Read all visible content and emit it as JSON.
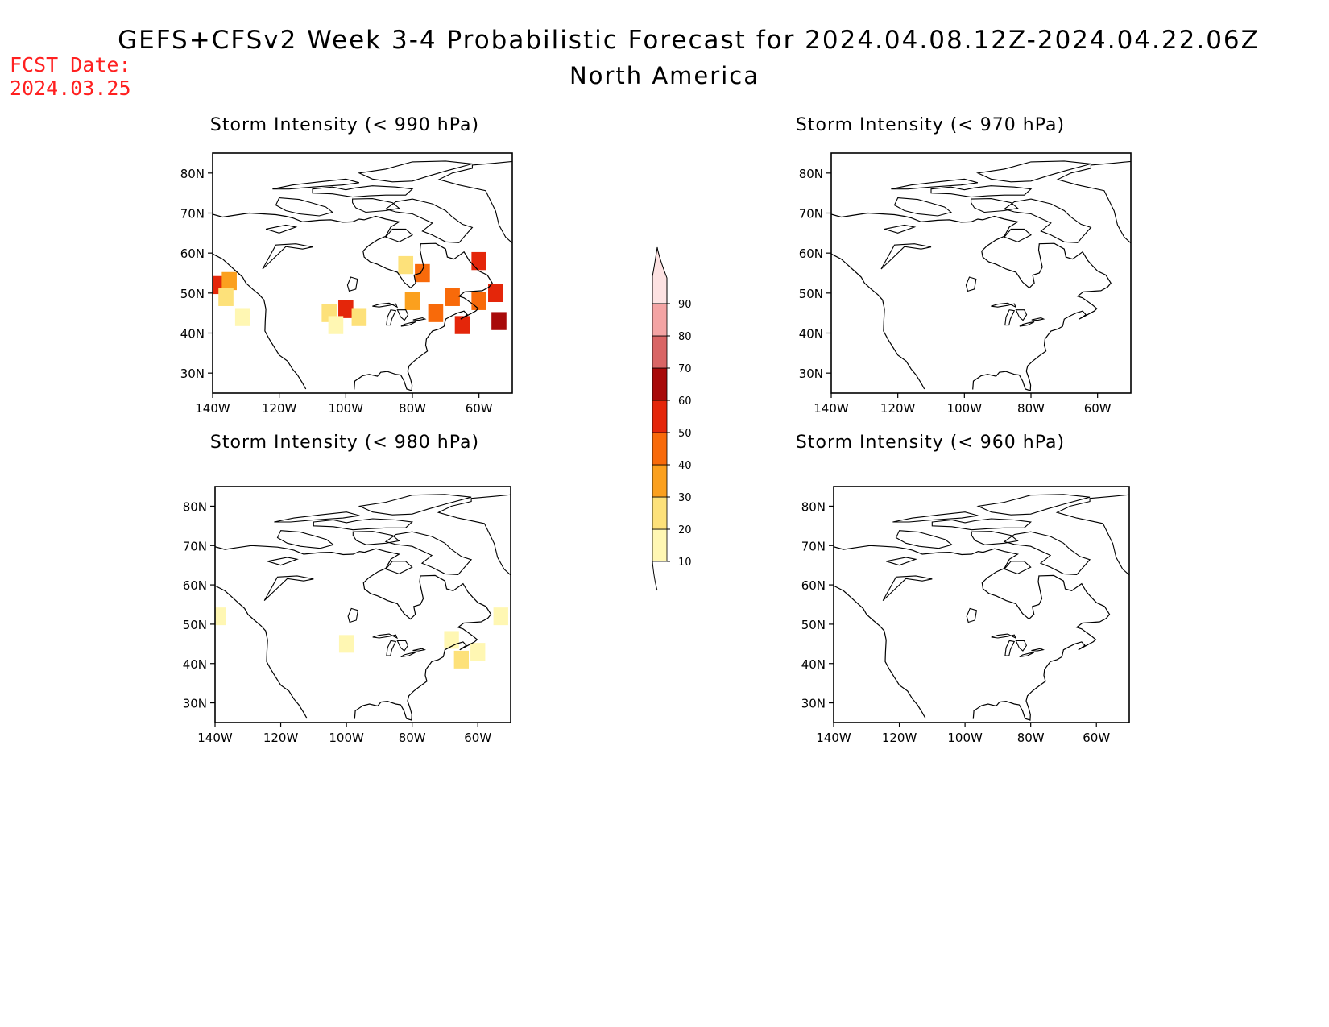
{
  "title": "GEFS+CFSv2 Week 3-4 Probabilistic Forecast for 2024.04.08.12Z-2024.04.22.06Z",
  "subtitle": "North America",
  "fcst_label": "FCST Date:",
  "fcst_date": "2024.03.25",
  "lat_ticks": [
    "80N",
    "70N",
    "60N",
    "50N",
    "40N",
    "30N"
  ],
  "lon_ticks": [
    "140W",
    "120W",
    "100W",
    "80W",
    "60W"
  ],
  "panels": [
    {
      "id": "p990",
      "title": "Storm Intensity (< 990 hPa)"
    },
    {
      "id": "p970",
      "title": "Storm Intensity (< 970 hPa)"
    },
    {
      "id": "p980",
      "title": "Storm Intensity (< 980 hPa)"
    },
    {
      "id": "p960",
      "title": "Storm Intensity (< 960 hPa)"
    }
  ],
  "colorbar": {
    "levels": [
      "10",
      "20",
      "30",
      "40",
      "50",
      "60",
      "70",
      "80",
      "90"
    ],
    "colors": [
      "#fff7b3",
      "#fde17a",
      "#fba01e",
      "#f86a0a",
      "#e4260a",
      "#a80a0a",
      "#d96565",
      "#f4a4a4",
      "#fde2e2"
    ]
  },
  "chart_data": [
    {
      "type": "heatmap",
      "title": "Storm Intensity (< 990 hPa)",
      "x_range": [
        -140,
        -50
      ],
      "y_range": [
        25,
        85
      ],
      "cells": [
        {
          "lon": -138,
          "lat": 52,
          "value": 55
        },
        {
          "lon": -135,
          "lat": 53,
          "value": 35
        },
        {
          "lon": -136,
          "lat": 49,
          "value": 25
        },
        {
          "lon": -131,
          "lat": 44,
          "value": 15
        },
        {
          "lon": -105,
          "lat": 45,
          "value": 25
        },
        {
          "lon": -100,
          "lat": 46,
          "value": 55
        },
        {
          "lon": -96,
          "lat": 44,
          "value": 20
        },
        {
          "lon": -103,
          "lat": 42,
          "value": 15
        },
        {
          "lon": -82,
          "lat": 57,
          "value": 25
        },
        {
          "lon": -77,
          "lat": 55,
          "value": 40
        },
        {
          "lon": -80,
          "lat": 48,
          "value": 30
        },
        {
          "lon": -73,
          "lat": 45,
          "value": 45
        },
        {
          "lon": -65,
          "lat": 42,
          "value": 55
        },
        {
          "lon": -60,
          "lat": 48,
          "value": 45
        },
        {
          "lon": -55,
          "lat": 50,
          "value": 55
        },
        {
          "lon": -60,
          "lat": 58,
          "value": 50
        },
        {
          "lon": -54,
          "lat": 43,
          "value": 60
        },
        {
          "lon": -68,
          "lat": 49,
          "value": 40
        }
      ]
    },
    {
      "type": "heatmap",
      "title": "Storm Intensity (< 970 hPa)",
      "x_range": [
        -140,
        -50
      ],
      "y_range": [
        25,
        85
      ],
      "cells": []
    },
    {
      "type": "heatmap",
      "title": "Storm Intensity (< 980 hPa)",
      "x_range": [
        -140,
        -50
      ],
      "y_range": [
        25,
        85
      ],
      "cells": [
        {
          "lon": -139,
          "lat": 52,
          "value": 15
        },
        {
          "lon": -100,
          "lat": 45,
          "value": 12
        },
        {
          "lon": -68,
          "lat": 46,
          "value": 18
        },
        {
          "lon": -65,
          "lat": 41,
          "value": 20
        },
        {
          "lon": -60,
          "lat": 43,
          "value": 15
        },
        {
          "lon": -53,
          "lat": 52,
          "value": 15
        }
      ]
    },
    {
      "type": "heatmap",
      "title": "Storm Intensity (< 960 hPa)",
      "x_range": [
        -140,
        -50
      ],
      "y_range": [
        25,
        85
      ],
      "cells": []
    }
  ]
}
